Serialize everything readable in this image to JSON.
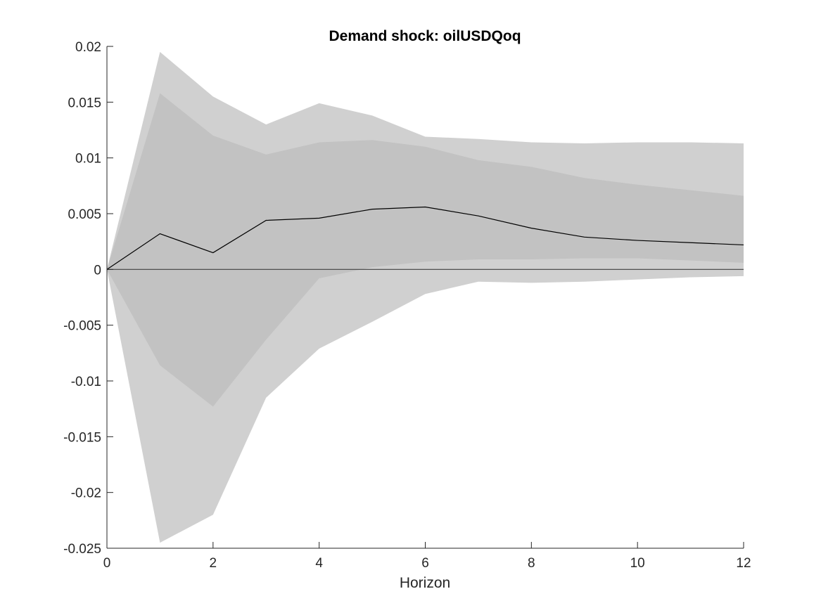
{
  "chart_data": {
    "type": "area",
    "title": "Demand shock: oilUSDQoq",
    "xlabel": "Horizon",
    "ylabel": "",
    "xlim": [
      0,
      12
    ],
    "ylim": [
      -0.025,
      0.02
    ],
    "xticks": [
      0,
      2,
      4,
      6,
      8,
      10,
      12
    ],
    "xtick_labels": [
      "0",
      "2",
      "4",
      "6",
      "8",
      "10",
      "12"
    ],
    "yticks": [
      0.02,
      0.015,
      0.01,
      0.005,
      0,
      -0.005,
      -0.01,
      -0.015,
      -0.02,
      -0.025
    ],
    "ytick_labels": [
      "0.02",
      "0.015",
      "0.01",
      "0.005",
      "0",
      "-0.005",
      "-0.01",
      "-0.015",
      "-0.02",
      "-0.025"
    ],
    "grid": false,
    "legend": "none",
    "x": [
      0,
      1,
      2,
      3,
      4,
      5,
      6,
      7,
      8,
      9,
      10,
      11,
      12
    ],
    "bands": [
      {
        "lower": [
          0,
          -0.0245,
          -0.022,
          -0.0115,
          -0.0071,
          -0.0047,
          -0.0022,
          -0.0011,
          -0.0012,
          -0.0011,
          -0.0009,
          -0.0007,
          -0.0006
        ],
        "upper": [
          0,
          0.0195,
          0.0155,
          0.013,
          0.0149,
          0.0138,
          0.0119,
          0.0117,
          0.0114,
          0.0113,
          0.0114,
          0.0114,
          0.0113
        ],
        "color": "#d0d0d0"
      },
      {
        "lower": [
          0,
          -0.0086,
          -0.0123,
          -0.0063,
          -0.0008,
          0.0002,
          0.0007,
          0.0009,
          0.0009,
          0.001,
          0.001,
          0.0008,
          0.0006
        ],
        "upper": [
          0,
          0.0158,
          0.012,
          0.0103,
          0.0114,
          0.0116,
          0.011,
          0.0098,
          0.0092,
          0.0082,
          0.0076,
          0.0071,
          0.0066
        ],
        "color": "#c2c2c2"
      }
    ],
    "series": [
      {
        "values": [
          0,
          0.0032,
          0.0015,
          0.0044,
          0.0046,
          0.0054,
          0.0056,
          0.0048,
          0.0037,
          0.0029,
          0.0026,
          0.0024,
          0.0022
        ],
        "color": "#000000"
      }
    ],
    "zero_line": {
      "value": 0,
      "color": "#404040"
    },
    "axis_color": "#262626"
  }
}
